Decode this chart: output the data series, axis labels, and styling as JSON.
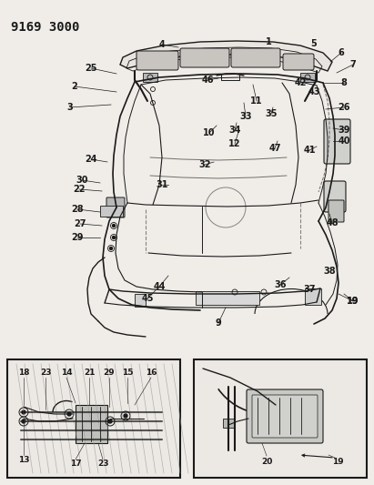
{
  "title": "9169 3000",
  "bg_color": "#f0ede8",
  "line_color": "#1a1a1a",
  "title_fontsize": 10,
  "label_fontsize": 7,
  "figsize": [
    4.11,
    5.33
  ],
  "dpi": 100,
  "body_gray": "#c8c8c8",
  "light_gray": "#d8d8d8",
  "mid_gray": "#b0b0b0"
}
